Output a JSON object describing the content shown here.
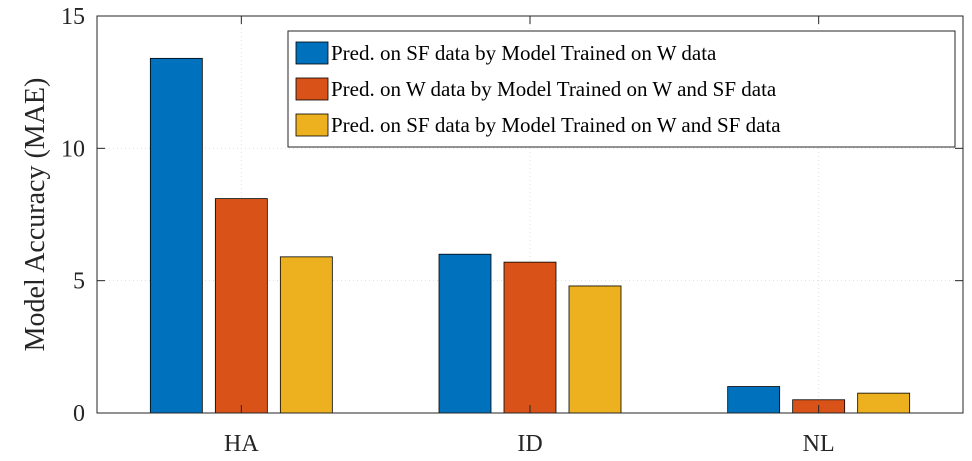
{
  "chart_data": {
    "type": "bar",
    "title": "",
    "xlabel": "",
    "ylabel": "Model Accuracy (MAE)",
    "categories": [
      "HA",
      "ID",
      "NL"
    ],
    "ylim": [
      0,
      15
    ],
    "yticks": [
      0,
      5,
      10,
      15
    ],
    "grid": true,
    "legend_position": "top-right",
    "series": [
      {
        "name": "Pred. on SF data by Model Trained on W data",
        "color": "#0072BD",
        "values": [
          13.4,
          6.0,
          1.0
        ]
      },
      {
        "name": "Pred. on W data by Model Trained on W and SF data",
        "color": "#D95319",
        "values": [
          8.1,
          5.7,
          0.5
        ]
      },
      {
        "name": "Pred. on SF data by Model Trained on W and SF data",
        "color": "#EDB120",
        "values": [
          5.9,
          4.8,
          0.75
        ]
      }
    ]
  }
}
